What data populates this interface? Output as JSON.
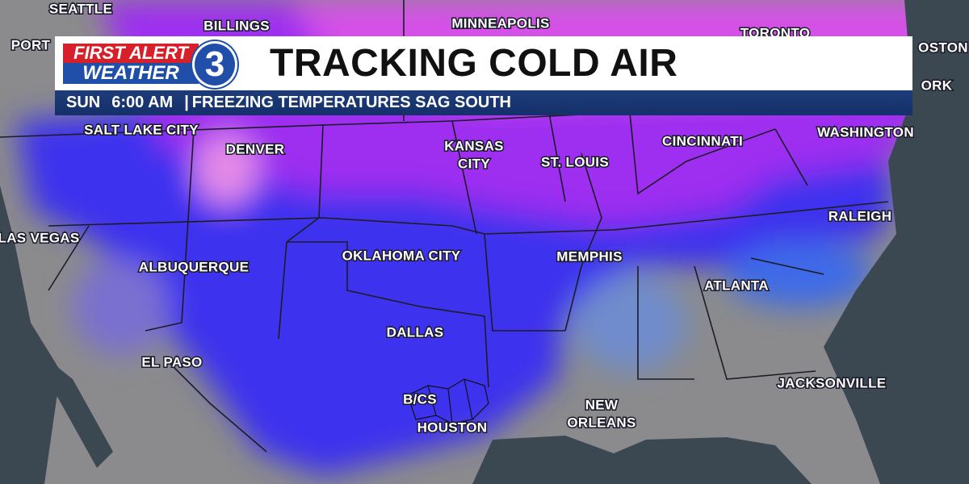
{
  "header": {
    "logo": {
      "line1": "FIRST ALERT",
      "line2": "WEATHER",
      "badge": "3"
    },
    "title": "TRACKING COLD AIR",
    "subtitle": {
      "day": "SUN",
      "time": "6:00 AM",
      "separator": "|",
      "text": "FREEZING TEMPERATURES SAG SOUTH"
    }
  },
  "cities": [
    {
      "lines": [
        "SEATTLE"
      ]
    },
    {
      "lines": [
        "BILLINGS"
      ]
    },
    {
      "lines": [
        "MINNEAPOLIS"
      ]
    },
    {
      "lines": [
        "TORONTO"
      ]
    },
    {
      "lines": [
        "PORT"
      ]
    },
    {
      "lines": [
        "OSTON"
      ]
    },
    {
      "lines": [
        "ORK"
      ]
    },
    {
      "lines": [
        "SALT LAKE CITY"
      ]
    },
    {
      "lines": [
        "DENVER"
      ]
    },
    {
      "lines": [
        "KANSAS",
        "CITY"
      ]
    },
    {
      "lines": [
        "ST. LOUIS"
      ]
    },
    {
      "lines": [
        "CINCINNATI"
      ]
    },
    {
      "lines": [
        "WASHINGTON"
      ]
    },
    {
      "lines": [
        "LAS VEGAS"
      ]
    },
    {
      "lines": [
        "ALBUQUERQUE"
      ]
    },
    {
      "lines": [
        "OKLAHOMA CITY"
      ]
    },
    {
      "lines": [
        "MEMPHIS"
      ]
    },
    {
      "lines": [
        "RALEIGH"
      ]
    },
    {
      "lines": [
        "ATLANTA"
      ]
    },
    {
      "lines": [
        "DALLAS"
      ]
    },
    {
      "lines": [
        "EL PASO"
      ]
    },
    {
      "lines": [
        "B/CS"
      ]
    },
    {
      "lines": [
        "HOUSTON"
      ]
    },
    {
      "lines": [
        "NEW",
        "ORLEANS"
      ]
    },
    {
      "lines": [
        "JACKSONVILLE"
      ]
    }
  ]
}
